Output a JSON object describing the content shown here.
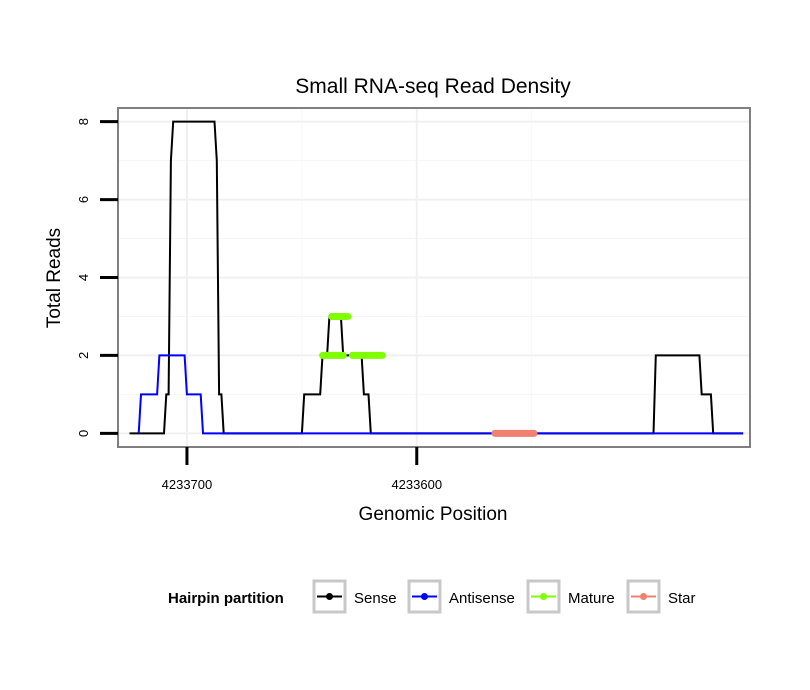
{
  "chart_data": {
    "type": "line",
    "title": "Small RNA-seq Read Density",
    "xlabel": "Genomic Position",
    "ylabel": "Total Reads",
    "x_reversed": true,
    "xlim": [
      4233730,
      4233455
    ],
    "ylim": [
      -0.35,
      8.35
    ],
    "x_ticks": [
      4233700,
      4233600
    ],
    "x_tick_labels": [
      "4233700",
      "4233600"
    ],
    "y_ticks": [
      0,
      2,
      4,
      6,
      8
    ],
    "y_tick_labels": [
      "0",
      "2",
      "4",
      "6",
      "8"
    ],
    "grid": true,
    "legend": {
      "title": "Hairpin partition",
      "position": "bottom",
      "entries": [
        "Sense",
        "Antisense",
        "Mature",
        "Star"
      ]
    },
    "series": [
      {
        "name": "Sense",
        "color": "#000000",
        "style": "line",
        "points": [
          [
            4233725,
            0
          ],
          [
            4233710,
            0
          ],
          [
            4233709,
            1
          ],
          [
            4233708,
            1
          ],
          [
            4233707,
            7
          ],
          [
            4233706,
            8
          ],
          [
            4233688,
            8
          ],
          [
            4233687,
            7
          ],
          [
            4233686,
            1
          ],
          [
            4233685,
            1
          ],
          [
            4233684,
            0
          ],
          [
            4233650,
            0
          ],
          [
            4233649,
            1
          ],
          [
            4233642,
            1
          ],
          [
            4233641,
            2
          ],
          [
            4233639,
            2
          ],
          [
            4233638,
            3
          ],
          [
            4233633,
            3
          ],
          [
            4233632,
            2
          ],
          [
            4233624,
            2
          ],
          [
            4233623,
            1
          ],
          [
            4233621,
            1
          ],
          [
            4233620,
            0
          ],
          [
            4233497,
            0
          ],
          [
            4233496,
            2
          ],
          [
            4233477,
            2
          ],
          [
            4233476,
            1
          ],
          [
            4233472,
            1
          ],
          [
            4233471,
            0
          ],
          [
            4233458,
            0
          ]
        ]
      },
      {
        "name": "Antisense",
        "color": "#0000ff",
        "style": "line",
        "points": [
          [
            4233721,
            0
          ],
          [
            4233720,
            1
          ],
          [
            4233713,
            1
          ],
          [
            4233712,
            2
          ],
          [
            4233701,
            2
          ],
          [
            4233700,
            1
          ],
          [
            4233694,
            1
          ],
          [
            4233693,
            0
          ],
          [
            4233506,
            0
          ],
          [
            4233458,
            0
          ]
        ]
      },
      {
        "name": "Mature",
        "color": "#7fff00",
        "style": "thick",
        "segments": [
          {
            "x": [
              4233641,
              4233632
            ],
            "y": 2
          },
          {
            "x": [
              4233637,
              4233630
            ],
            "y": 3
          },
          {
            "x": [
              4233628,
              4233615
            ],
            "y": 2
          }
        ]
      },
      {
        "name": "Star",
        "color": "#f08070",
        "style": "thick",
        "segments": [
          {
            "x": [
              4233566,
              4233549
            ],
            "y": 0
          }
        ]
      }
    ]
  }
}
